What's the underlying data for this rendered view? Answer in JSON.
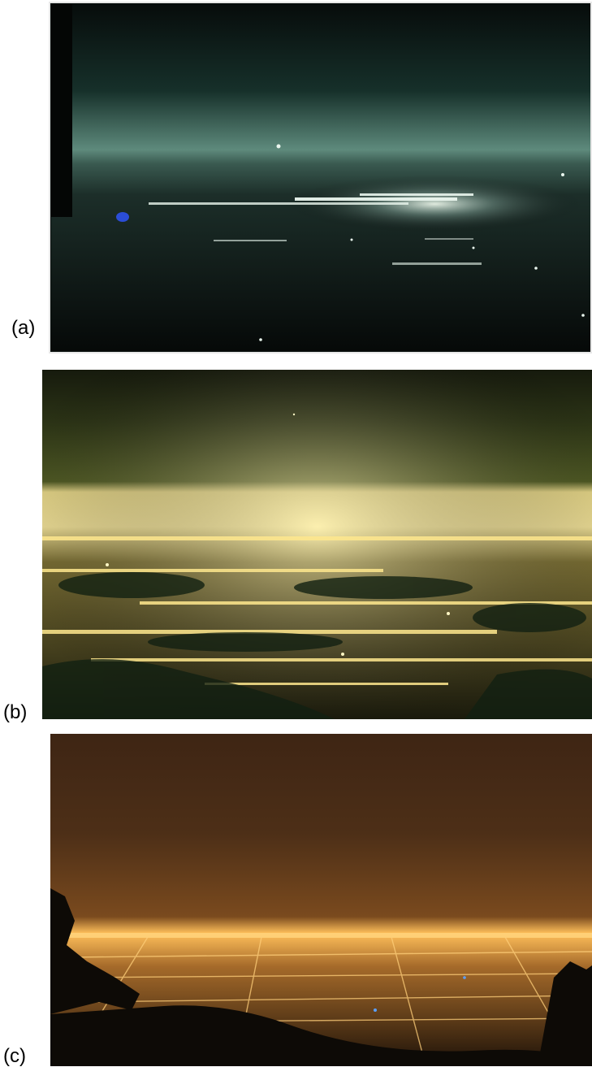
{
  "figure": {
    "panels": [
      {
        "id": "a",
        "label": "(a)",
        "caption_image": "night-city-photo-a"
      },
      {
        "id": "b",
        "label": "(b)",
        "caption_image": "night-city-photo-b"
      },
      {
        "id": "c",
        "label": "(c)",
        "caption_image": "night-city-photo-c"
      }
    ]
  },
  "colors": {
    "background": "#ffffff",
    "panel_a_sky": "#1f3a34",
    "panel_a_lights": "#e8f2e6",
    "panel_b_sky": "#3d4a1c",
    "panel_b_lights": "#ffe68a",
    "panel_c_sky": "#4a2c14",
    "panel_c_lights": "#ffb347"
  }
}
